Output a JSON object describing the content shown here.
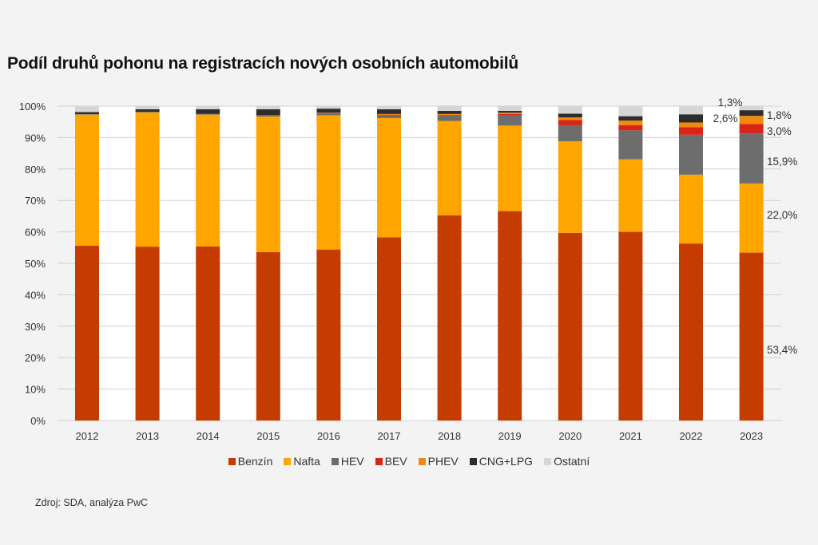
{
  "chart_data": {
    "type": "bar",
    "stacked": true,
    "title": "Podíl druhů pohonu na registracích nových osobních automobilů",
    "xlabel": "",
    "ylabel": "",
    "ylim": [
      0,
      100
    ],
    "yticks": [
      "0%",
      "10%",
      "20%",
      "30%",
      "40%",
      "50%",
      "60%",
      "70%",
      "80%",
      "90%",
      "100%"
    ],
    "grid": true,
    "legend_position": "bottom",
    "categories": [
      "2012",
      "2013",
      "2014",
      "2015",
      "2016",
      "2017",
      "2018",
      "2019",
      "2020",
      "2021",
      "2022",
      "2023"
    ],
    "series": [
      {
        "name": "Benzín",
        "color": "#c43c00",
        "values": [
          55.6,
          55.3,
          55.4,
          53.6,
          54.4,
          58.3,
          65.3,
          66.6,
          59.7,
          60.0,
          56.3,
          53.4
        ]
      },
      {
        "name": "Nafta",
        "color": "#ffa500",
        "values": [
          41.7,
          42.7,
          41.9,
          43.1,
          42.7,
          37.9,
          30.0,
          27.2,
          29.1,
          23.1,
          21.9,
          22.0
        ]
      },
      {
        "name": "HEV",
        "color": "#6d6d6d",
        "values": [
          0.1,
          0.2,
          0.2,
          0.4,
          0.6,
          1.0,
          1.7,
          3.3,
          5.1,
          9.2,
          12.7,
          15.9
        ]
      },
      {
        "name": "BEV",
        "color": "#d92516",
        "values": [
          0.0,
          0.0,
          0.0,
          0.1,
          0.1,
          0.1,
          0.2,
          0.4,
          1.7,
          1.6,
          2.4,
          3.0
        ]
      },
      {
        "name": "PHEV",
        "color": "#ef8a10",
        "values": [
          0.0,
          0.0,
          0.0,
          0.0,
          0.1,
          0.2,
          0.3,
          0.4,
          0.8,
          1.5,
          1.5,
          2.6
        ]
      },
      {
        "name": "CNG+LPG",
        "color": "#2d2d2d",
        "values": [
          0.7,
          0.8,
          1.5,
          1.8,
          1.3,
          1.5,
          1.0,
          0.6,
          1.2,
          1.4,
          2.6,
          1.8
        ]
      },
      {
        "name": "Ostatní",
        "color": "#d6d6d6",
        "values": [
          1.9,
          1.0,
          1.0,
          1.0,
          0.8,
          1.0,
          1.5,
          1.5,
          2.4,
          3.2,
          2.6,
          1.3
        ]
      }
    ],
    "annotations": [
      {
        "category": "2023",
        "series": "Ostatní",
        "text": "1,3%"
      },
      {
        "category": "2023",
        "series": "CNG+LPG",
        "text": "1,8%"
      },
      {
        "category": "2023",
        "series": "PHEV",
        "text": "2,6%"
      },
      {
        "category": "2023",
        "series": "BEV",
        "text": "3,0%"
      },
      {
        "category": "2023",
        "series": "HEV",
        "text": "15,9%"
      },
      {
        "category": "2023",
        "series": "Nafta",
        "text": "22,0%"
      },
      {
        "category": "2023",
        "series": "Benzín",
        "text": "53,4%"
      }
    ]
  },
  "source": "Zdroj: SDA, analýza PwC"
}
